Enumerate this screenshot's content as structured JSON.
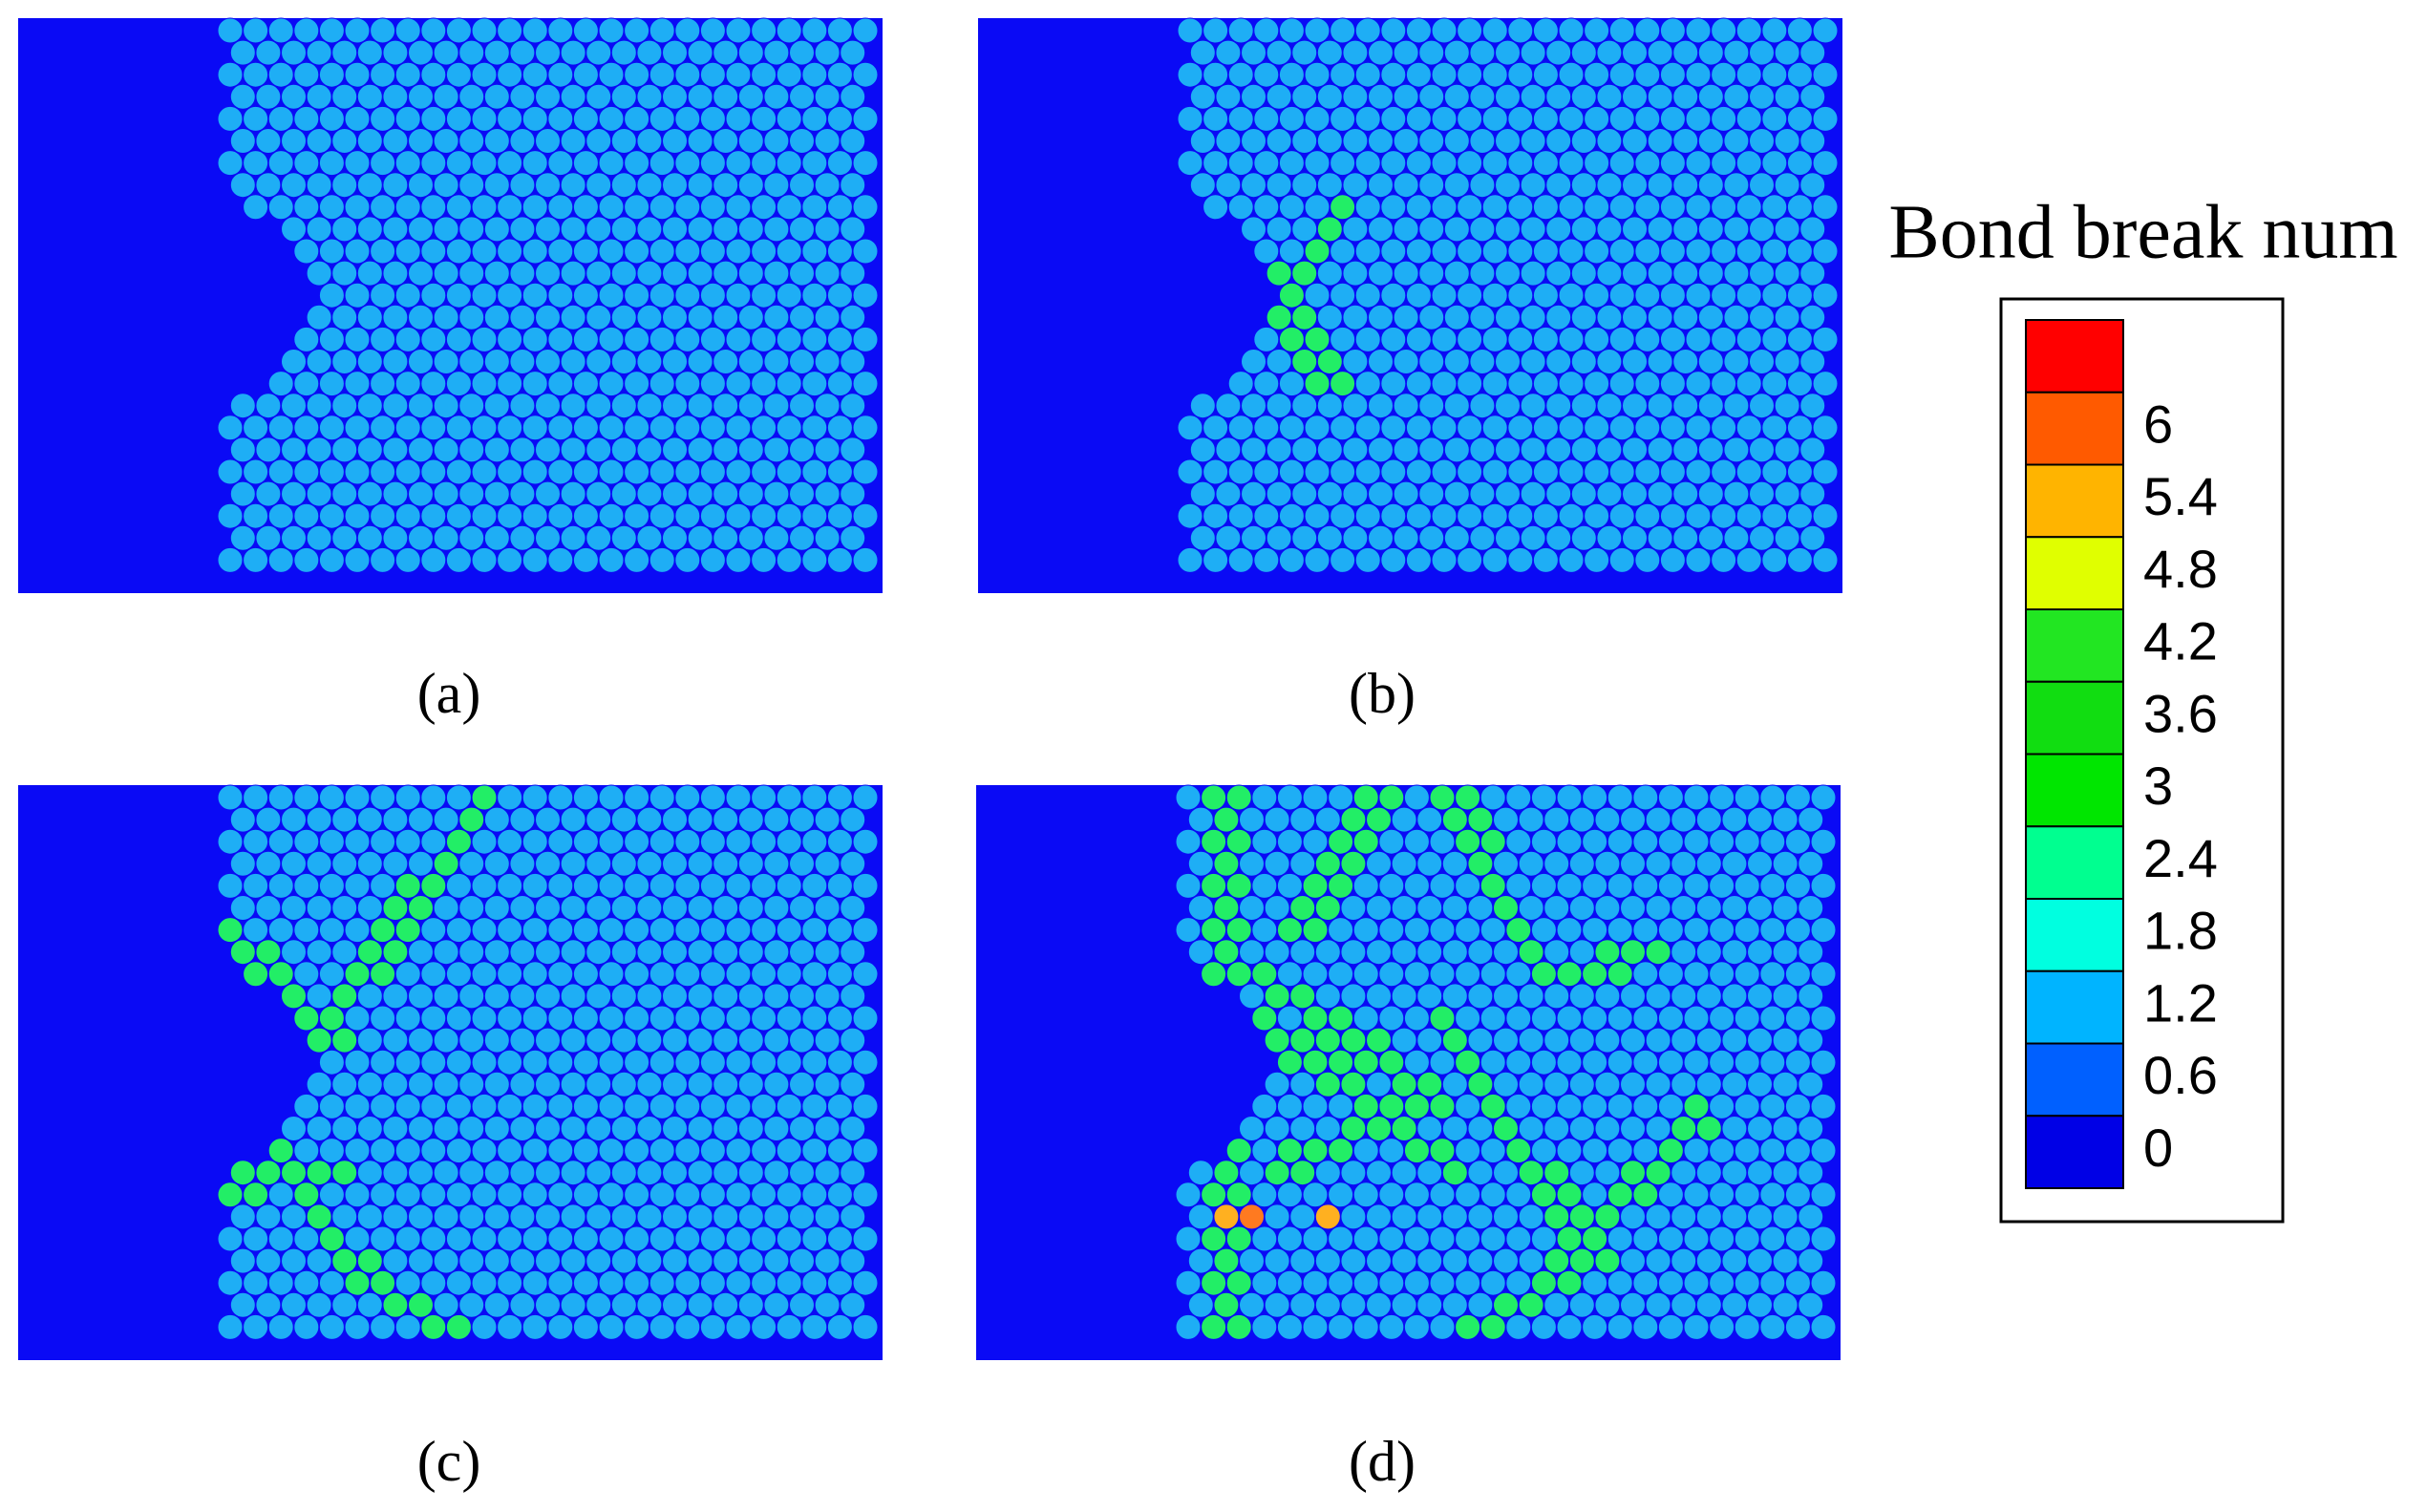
{
  "panels": [
    {
      "label": "(a)"
    },
    {
      "label": "(b)"
    },
    {
      "label": "(c)"
    },
    {
      "label": "(d)"
    }
  ],
  "colorbar": {
    "title": "Bond break num",
    "ticks": [
      6,
      5.4,
      4.8,
      4.2,
      3.6,
      3,
      2.4,
      1.8,
      1.2,
      0.6,
      0
    ],
    "colors": [
      "#ff5a00",
      "#ffb400",
      "#e0ff00",
      "#22e622",
      "#11dd11",
      "#00e600",
      "#00ff90",
      "#00ffe0",
      "#00b4ff",
      "#0060ff",
      "#0000e6"
    ],
    "top_color": "#ff0000"
  }
}
